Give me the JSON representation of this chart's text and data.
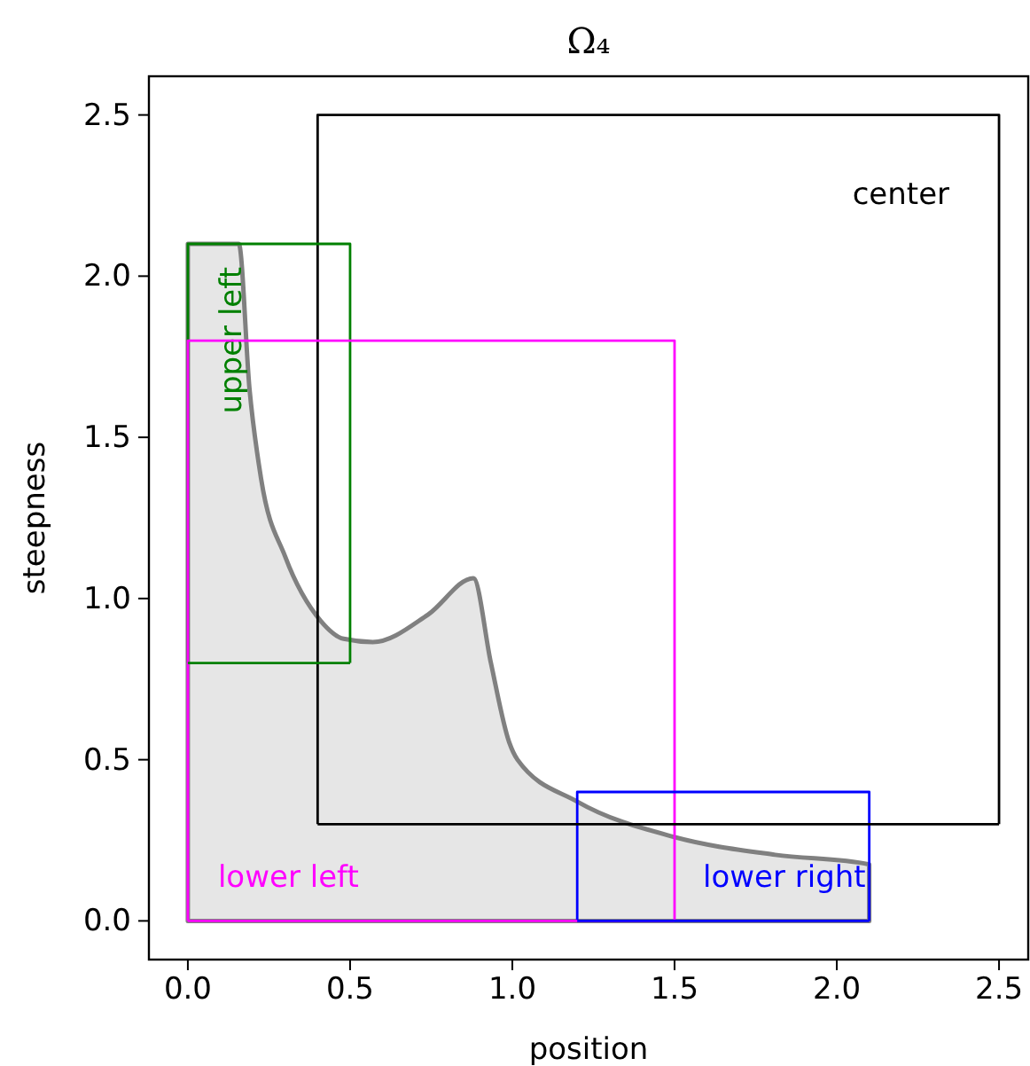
{
  "chart_data": {
    "type": "line",
    "title": "Ω₄",
    "xlabel": "position",
    "ylabel": "steepness",
    "xlim": [
      -0.12,
      2.59
    ],
    "ylim": [
      -0.12,
      2.62
    ],
    "xticks": [
      {
        "value": 0,
        "label": "0.0"
      },
      {
        "value": 0.5,
        "label": "0.5"
      },
      {
        "value": 1,
        "label": "1.0"
      },
      {
        "value": 1.5,
        "label": "1.5"
      },
      {
        "value": 2,
        "label": "2.0"
      },
      {
        "value": 2.5,
        "label": "2.5"
      }
    ],
    "yticks": [
      {
        "value": 0,
        "label": "0.0"
      },
      {
        "value": 0.5,
        "label": "0.5"
      },
      {
        "value": 1,
        "label": "1.0"
      },
      {
        "value": 1.5,
        "label": "1.5"
      },
      {
        "value": 2,
        "label": "2.0"
      },
      {
        "value": 2.5,
        "label": "2.5"
      }
    ],
    "series": [
      {
        "type": "area",
        "color": "#808080",
        "x": [
          0,
          0.157,
          0.19,
          0.226,
          0.3,
          0.41,
          0.48,
          0.57,
          0.74,
          0.88,
          0.934,
          0.99,
          1.016,
          1.2,
          1.5,
          1.81,
          2.1
        ],
        "values": [
          2.1,
          2.1,
          1.65,
          1.37,
          1.13,
          0.93,
          0.875,
          0.865,
          0.95,
          1.063,
          0.8,
          0.555,
          0.5,
          0.37,
          0.26,
          0.205,
          0.175
        ]
      },
      {
        "name": "center",
        "color": "#000000",
        "x": [
          0.4,
          0.4,
          2.5,
          2.5
        ],
        "values": [
          0.3,
          2.5,
          2.5,
          0.3
        ]
      },
      {
        "name": "upper left",
        "color": "#008000",
        "x": [
          0,
          0,
          0.5,
          0.5
        ],
        "values": [
          0.8,
          2.1,
          2.1,
          0.8
        ]
      },
      {
        "name": "lower left",
        "color": "#ff00ff",
        "x": [
          0,
          0,
          1.5,
          1.5
        ],
        "values": [
          0,
          1.8,
          1.8,
          0
        ]
      },
      {
        "name": "lower right",
        "color": "#0000ff",
        "x": [
          1.2,
          1.2,
          2.1,
          2.1
        ],
        "values": [
          0,
          0.4,
          0.4,
          0
        ]
      },
      {
        "color": "#000000",
        "x": [
          0.4,
          2.5
        ],
        "values": [
          0.3,
          0.3
        ]
      },
      {
        "color": "#008000",
        "x": [
          0,
          0.5
        ],
        "values": [
          0.8,
          0.8
        ]
      },
      {
        "color": "#ff00ff",
        "x": [
          0,
          1.5
        ],
        "values": [
          0,
          0
        ]
      },
      {
        "color": "#0000ff",
        "x": [
          1.2,
          2.1
        ],
        "values": [
          0,
          0
        ]
      }
    ]
  }
}
